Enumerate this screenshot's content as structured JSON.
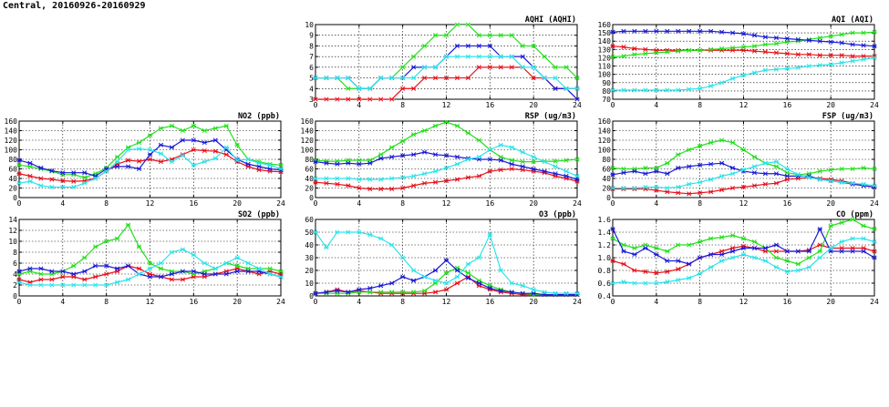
{
  "figure_title": "Central, 20160926-20160929",
  "colors": {
    "red": "#e8101a",
    "green": "#22e01a",
    "blue": "#1a1ad8",
    "cyan": "#2ae4ea"
  },
  "chart_data": [
    {
      "id": "aqhi",
      "type": "line",
      "title": "AQHI (AQHI)",
      "xlim": [
        0,
        24
      ],
      "ylim": [
        3,
        10
      ],
      "xticks": [
        "0",
        "4",
        "8",
        "12",
        "16",
        "20",
        "24"
      ],
      "yticks": [
        "3",
        "4",
        "5",
        "6",
        "7",
        "8",
        "9",
        "10"
      ],
      "grid": true,
      "series": [
        {
          "color": "red",
          "values": [
            3,
            3,
            3,
            3,
            3,
            3,
            3,
            3,
            4,
            4,
            5,
            5,
            5,
            5,
            5,
            6,
            6,
            6,
            6,
            6,
            5,
            5,
            4,
            4,
            4
          ]
        },
        {
          "color": "green",
          "values": [
            5,
            5,
            5,
            4,
            4,
            4,
            5,
            5,
            6,
            7,
            8,
            9,
            9,
            10,
            10,
            9,
            9,
            9,
            9,
            8,
            8,
            7,
            6,
            6,
            5
          ]
        },
        {
          "color": "blue",
          "values": [
            5,
            5,
            5,
            5,
            4,
            4,
            5,
            5,
            5,
            6,
            6,
            6,
            7,
            8,
            8,
            8,
            8,
            7,
            7,
            7,
            6,
            5,
            4,
            4,
            3
          ]
        },
        {
          "color": "cyan",
          "values": [
            5,
            5,
            5,
            5,
            4,
            4,
            5,
            5,
            5,
            5,
            6,
            6,
            7,
            7,
            7,
            7,
            7,
            7,
            7,
            6,
            6,
            5,
            5,
            4,
            4
          ]
        }
      ]
    },
    {
      "id": "aqi",
      "type": "line",
      "title": "AQI (AQI)",
      "xlim": [
        0,
        24
      ],
      "ylim": [
        70,
        160
      ],
      "xticks": [
        "0",
        "4",
        "8",
        "12",
        "16",
        "20",
        "24"
      ],
      "yticks": [
        "70",
        "80",
        "90",
        "100",
        "110",
        "120",
        "130",
        "140",
        "150",
        "160"
      ],
      "grid": true,
      "series": [
        {
          "color": "red",
          "values": [
            134,
            133,
            131,
            130,
            129,
            129,
            129,
            129,
            129,
            129,
            129,
            129,
            129,
            128,
            127,
            126,
            125,
            124,
            124,
            123,
            123,
            123,
            122,
            122,
            122
          ]
        },
        {
          "color": "green",
          "values": [
            121,
            122,
            124,
            125,
            126,
            127,
            128,
            129,
            129,
            130,
            131,
            132,
            133,
            134,
            136,
            137,
            139,
            140,
            142,
            144,
            146,
            148,
            150,
            150,
            151
          ]
        },
        {
          "color": "blue",
          "values": [
            151,
            152,
            152,
            152,
            152,
            152,
            152,
            152,
            152,
            152,
            151,
            150,
            149,
            147,
            145,
            144,
            143,
            142,
            141,
            140,
            139,
            138,
            136,
            135,
            134
          ]
        },
        {
          "color": "cyan",
          "values": [
            81,
            81,
            81,
            81,
            81,
            81,
            81,
            82,
            83,
            86,
            90,
            95,
            99,
            102,
            105,
            106,
            107,
            108,
            110,
            111,
            112,
            114,
            116,
            118,
            120
          ]
        }
      ]
    },
    {
      "id": "no2",
      "type": "line",
      "title": "NO2 (ppb)",
      "xlim": [
        0,
        24
      ],
      "ylim": [
        0,
        160
      ],
      "xticks": [
        "0",
        "4",
        "8",
        "12",
        "16",
        "20",
        "24"
      ],
      "yticks": [
        "0",
        "20",
        "40",
        "60",
        "80",
        "100",
        "120",
        "140",
        "160"
      ],
      "grid": true,
      "series": [
        {
          "color": "red",
          "values": [
            50,
            45,
            40,
            38,
            35,
            34,
            35,
            40,
            55,
            70,
            78,
            76,
            80,
            75,
            80,
            90,
            100,
            98,
            97,
            90,
            75,
            65,
            58,
            55,
            54
          ]
        },
        {
          "color": "green",
          "values": [
            68,
            65,
            60,
            55,
            48,
            48,
            42,
            50,
            62,
            85,
            105,
            115,
            130,
            145,
            150,
            140,
            150,
            140,
            145,
            150,
            110,
            80,
            75,
            70,
            68
          ]
        },
        {
          "color": "blue",
          "values": [
            78,
            72,
            62,
            56,
            52,
            52,
            52,
            45,
            60,
            65,
            65,
            60,
            90,
            110,
            105,
            120,
            120,
            115,
            120,
            100,
            80,
            70,
            65,
            60,
            58
          ]
        },
        {
          "color": "cyan",
          "values": [
            30,
            34,
            25,
            22,
            22,
            22,
            30,
            40,
            55,
            75,
            100,
            102,
            100,
            92,
            75,
            88,
            68,
            75,
            82,
            105,
            78,
            80,
            72,
            68,
            60
          ]
        }
      ]
    },
    {
      "id": "rsp",
      "type": "line",
      "title": "RSP (ug/m3)",
      "xlim": [
        0,
        24
      ],
      "ylim": [
        0,
        160
      ],
      "xticks": [
        "0",
        "4",
        "8",
        "12",
        "16",
        "20",
        "24"
      ],
      "yticks": [
        "0",
        "20",
        "40",
        "60",
        "80",
        "100",
        "120",
        "140",
        "160"
      ],
      "grid": true,
      "series": [
        {
          "color": "red",
          "values": [
            32,
            30,
            28,
            25,
            20,
            18,
            18,
            18,
            20,
            25,
            30,
            32,
            35,
            38,
            42,
            45,
            55,
            58,
            60,
            58,
            55,
            52,
            45,
            40,
            34
          ]
        },
        {
          "color": "green",
          "values": [
            78,
            76,
            76,
            78,
            78,
            78,
            90,
            105,
            118,
            132,
            140,
            150,
            158,
            150,
            135,
            120,
            100,
            85,
            78,
            75,
            75,
            76,
            76,
            78,
            80
          ]
        },
        {
          "color": "blue",
          "values": [
            75,
            72,
            70,
            72,
            70,
            72,
            82,
            85,
            88,
            90,
            95,
            90,
            88,
            85,
            82,
            80,
            80,
            78,
            70,
            65,
            60,
            55,
            50,
            45,
            38
          ]
        },
        {
          "color": "cyan",
          "values": [
            40,
            40,
            40,
            40,
            38,
            38,
            38,
            40,
            42,
            45,
            50,
            55,
            62,
            70,
            80,
            85,
            100,
            110,
            105,
            95,
            85,
            75,
            65,
            55,
            45
          ]
        }
      ]
    },
    {
      "id": "fsp",
      "type": "line",
      "title": "FSP (ug/m3)",
      "xlim": [
        0,
        24
      ],
      "ylim": [
        0,
        160
      ],
      "xticks": [
        "0",
        "4",
        "8",
        "12",
        "16",
        "20",
        "24"
      ],
      "yticks": [
        "0",
        "20",
        "40",
        "60",
        "80",
        "100",
        "120",
        "140",
        "160"
      ],
      "grid": true,
      "series": [
        {
          "color": "red",
          "values": [
            18,
            18,
            18,
            18,
            15,
            12,
            10,
            8,
            10,
            12,
            16,
            20,
            22,
            25,
            28,
            30,
            38,
            40,
            42,
            40,
            38,
            35,
            30,
            25,
            22
          ]
        },
        {
          "color": "green",
          "values": [
            62,
            60,
            60,
            62,
            62,
            72,
            90,
            100,
            108,
            115,
            120,
            115,
            100,
            85,
            72,
            65,
            52,
            48,
            50,
            55,
            58,
            60,
            60,
            62,
            60
          ]
        },
        {
          "color": "blue",
          "values": [
            48,
            52,
            55,
            50,
            55,
            50,
            62,
            65,
            68,
            70,
            72,
            62,
            55,
            52,
            50,
            50,
            45,
            45,
            45,
            38,
            35,
            32,
            28,
            25,
            22
          ]
        },
        {
          "color": "cyan",
          "values": [
            20,
            20,
            20,
            22,
            22,
            20,
            22,
            28,
            32,
            38,
            45,
            50,
            58,
            65,
            72,
            75,
            60,
            48,
            42,
            38,
            35,
            32,
            30,
            28,
            25
          ]
        }
      ]
    },
    {
      "id": "so2",
      "type": "line",
      "title": "SO2 (ppb)",
      "xlim": [
        0,
        24
      ],
      "ylim": [
        0,
        14
      ],
      "xticks": [
        "0",
        "4",
        "8",
        "12",
        "16",
        "20",
        "24"
      ],
      "yticks": [
        "0",
        "2",
        "4",
        "6",
        "8",
        "10",
        "12",
        "14"
      ],
      "grid": true,
      "series": [
        {
          "color": "red",
          "values": [
            3,
            2.5,
            3,
            3,
            3.5,
            3.5,
            3,
            3.5,
            4,
            4.5,
            5.5,
            5,
            4,
            3.5,
            3,
            3,
            3.5,
            3.5,
            4,
            4.5,
            5,
            4.5,
            4,
            4.5,
            4
          ]
        },
        {
          "color": "green",
          "values": [
            4,
            4.5,
            4,
            4,
            4.5,
            5.5,
            7,
            9,
            10,
            10.5,
            13,
            9,
            6,
            5,
            4.5,
            4.5,
            4,
            4.5,
            5,
            6,
            5.5,
            5,
            5,
            5,
            4.5
          ]
        },
        {
          "color": "blue",
          "values": [
            4.5,
            5,
            5,
            4.5,
            4.5,
            4,
            4.5,
            5.5,
            5.5,
            5,
            5.5,
            4,
            3.5,
            3.5,
            4,
            4.5,
            4.5,
            4,
            4,
            4,
            4.5,
            4.5,
            4.5,
            4,
            3.5
          ]
        },
        {
          "color": "cyan",
          "values": [
            2.5,
            2,
            2,
            2,
            2,
            2,
            2,
            2,
            2,
            2.5,
            3,
            4,
            5,
            6,
            8,
            8.5,
            7.5,
            6,
            5,
            6,
            7,
            6,
            5,
            4,
            3.5
          ]
        }
      ]
    },
    {
      "id": "o3",
      "type": "line",
      "title": "O3 (ppb)",
      "xlim": [
        0,
        24
      ],
      "ylim": [
        0,
        60
      ],
      "xticks": [
        "0",
        "4",
        "8",
        "12",
        "16",
        "20",
        "24"
      ],
      "yticks": [
        "0",
        "10",
        "20",
        "30",
        "40",
        "50",
        "60"
      ],
      "grid": true,
      "series": [
        {
          "color": "red",
          "values": [
            2,
            3,
            5,
            3,
            4,
            3,
            2,
            2,
            2,
            2,
            2,
            3,
            5,
            10,
            15,
            8,
            5,
            3,
            2,
            1,
            1,
            1,
            1,
            1,
            1
          ]
        },
        {
          "color": "green",
          "values": [
            2,
            2,
            2,
            2,
            3,
            3,
            3,
            3,
            3,
            3,
            4,
            10,
            18,
            22,
            18,
            12,
            8,
            5,
            3,
            2,
            1,
            1,
            1,
            1,
            1
          ]
        },
        {
          "color": "blue",
          "values": [
            2,
            3,
            4,
            3,
            5,
            6,
            8,
            10,
            15,
            12,
            15,
            20,
            28,
            20,
            14,
            10,
            6,
            4,
            3,
            2,
            2,
            1,
            1,
            1,
            1
          ]
        },
        {
          "color": "cyan",
          "values": [
            50,
            38,
            50,
            50,
            50,
            48,
            45,
            40,
            30,
            20,
            15,
            12,
            10,
            15,
            25,
            30,
            48,
            20,
            10,
            8,
            5,
            3,
            2,
            2,
            2
          ]
        }
      ]
    },
    {
      "id": "co",
      "type": "line",
      "title": "CO (ppm)",
      "xlim": [
        0,
        24
      ],
      "ylim": [
        0.4,
        1.6
      ],
      "xticks": [
        "0",
        "4",
        "8",
        "12",
        "16",
        "20",
        "24"
      ],
      "yticks": [
        "0.4",
        "0.6",
        "0.8",
        "1.0",
        "1.2",
        "1.4",
        "1.6"
      ],
      "grid": true,
      "series": [
        {
          "color": "red",
          "values": [
            0.95,
            0.9,
            0.8,
            0.78,
            0.76,
            0.78,
            0.82,
            0.9,
            1.0,
            1.05,
            1.1,
            1.15,
            1.18,
            1.15,
            1.1,
            1.1,
            1.1,
            1.1,
            1.12,
            1.2,
            1.15,
            1.15,
            1.15,
            1.15,
            1.1
          ]
        },
        {
          "color": "green",
          "values": [
            1.3,
            1.2,
            1.15,
            1.2,
            1.15,
            1.1,
            1.2,
            1.2,
            1.25,
            1.3,
            1.32,
            1.35,
            1.3,
            1.25,
            1.15,
            1.0,
            0.95,
            0.9,
            1.0,
            1.1,
            1.5,
            1.55,
            1.6,
            1.5,
            1.45
          ]
        },
        {
          "color": "blue",
          "values": [
            1.45,
            1.1,
            1.05,
            1.15,
            1.05,
            0.95,
            0.95,
            0.9,
            1.0,
            1.05,
            1.05,
            1.1,
            1.15,
            1.15,
            1.15,
            1.2,
            1.1,
            1.1,
            1.1,
            1.45,
            1.1,
            1.1,
            1.1,
            1.1,
            1.0
          ]
        },
        {
          "color": "cyan",
          "values": [
            0.6,
            0.62,
            0.6,
            0.6,
            0.6,
            0.62,
            0.65,
            0.68,
            0.75,
            0.85,
            0.95,
            1.0,
            1.05,
            1.0,
            0.95,
            0.85,
            0.78,
            0.8,
            0.85,
            1.0,
            1.15,
            1.25,
            1.3,
            1.3,
            1.25
          ]
        }
      ]
    }
  ]
}
